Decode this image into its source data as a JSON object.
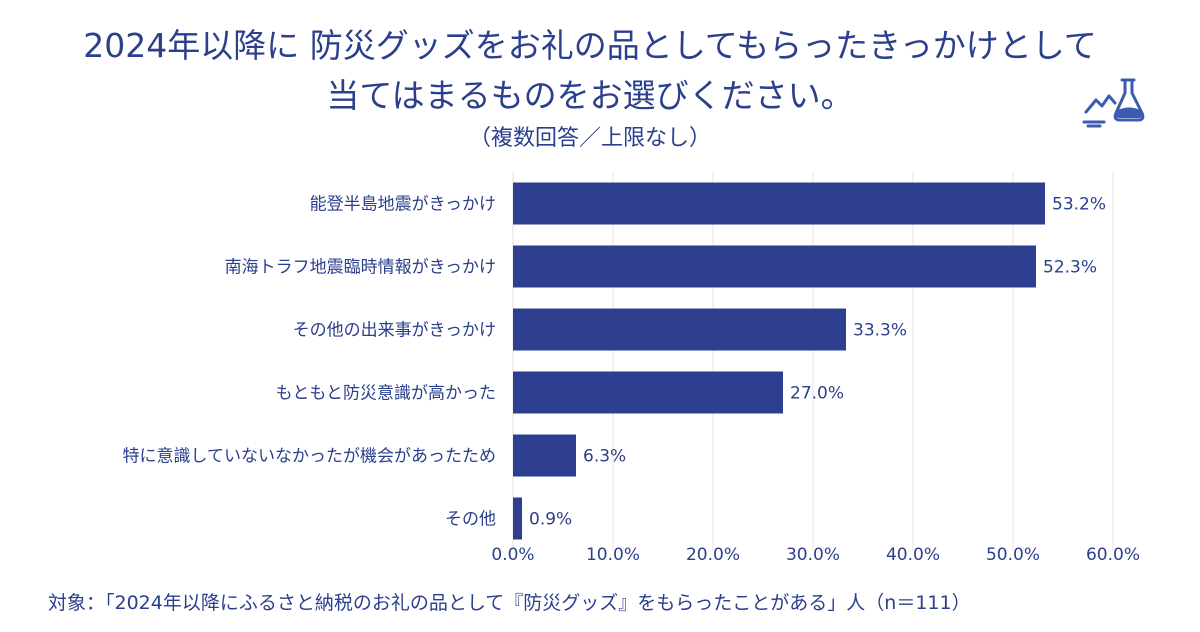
{
  "title_line1": "2024年以降に 防災グッズをお礼の品としてもらったきっかけとして",
  "title_line2": "当てはまるものをお選びください。",
  "subtitle": "（複数回答／上限なし）",
  "footnote": "対象：「2024年以降にふるさと納税のお礼の品として『防災グッズ』をもらったことがある」人（n＝111）",
  "colors": {
    "bar": "#2e3f8f",
    "text": "#2b3f8c",
    "grid": "#e3e3e3",
    "logo": "#3a5bb0"
  },
  "logo_icon": "flask-landscape-icon",
  "chart_data": {
    "type": "bar",
    "orientation": "horizontal",
    "categories": [
      "能登半島地震がきっかけ",
      "南海トラフ地震臨時情報がきっかけ",
      "その他の出来事がきっかけ",
      "もともと防災意識が高かった",
      "特に意識していないなかったが機会があったため",
      "その他"
    ],
    "values": [
      53.2,
      52.3,
      33.3,
      27.0,
      6.3,
      0.9
    ],
    "value_labels": [
      "53.2%",
      "52.3%",
      "33.3%",
      "27.0%",
      "6.3%",
      "0.9%"
    ],
    "xlim": [
      0,
      60
    ],
    "xticks": [
      0,
      10,
      20,
      30,
      40,
      50,
      60
    ],
    "xtick_labels": [
      "0.0%",
      "10.0%",
      "20.0%",
      "30.0%",
      "40.0%",
      "50.0%",
      "60.0%"
    ],
    "grid": true,
    "legend": "none"
  }
}
